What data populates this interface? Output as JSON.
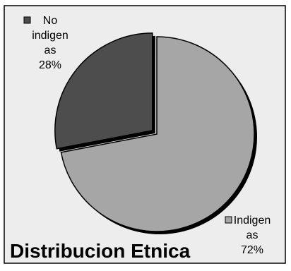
{
  "chart_data": {
    "type": "pie",
    "title": "Distribucion Etnica",
    "categories": [
      "No indigenas",
      "Indigenas"
    ],
    "values": [
      28,
      72
    ],
    "unit": "%",
    "data_labels": [
      {
        "lines": [
          "No",
          "indigen",
          "as",
          "28%"
        ]
      },
      {
        "lines": [
          "Indigen",
          "as",
          "72%"
        ]
      }
    ],
    "colors": [
      "#4d4d4d",
      "#a6a6a6"
    ],
    "legend": "inline-labels"
  },
  "colors": {
    "plot_background": "#ededed",
    "frame_border": "#000000",
    "shadow": "#000000"
  }
}
